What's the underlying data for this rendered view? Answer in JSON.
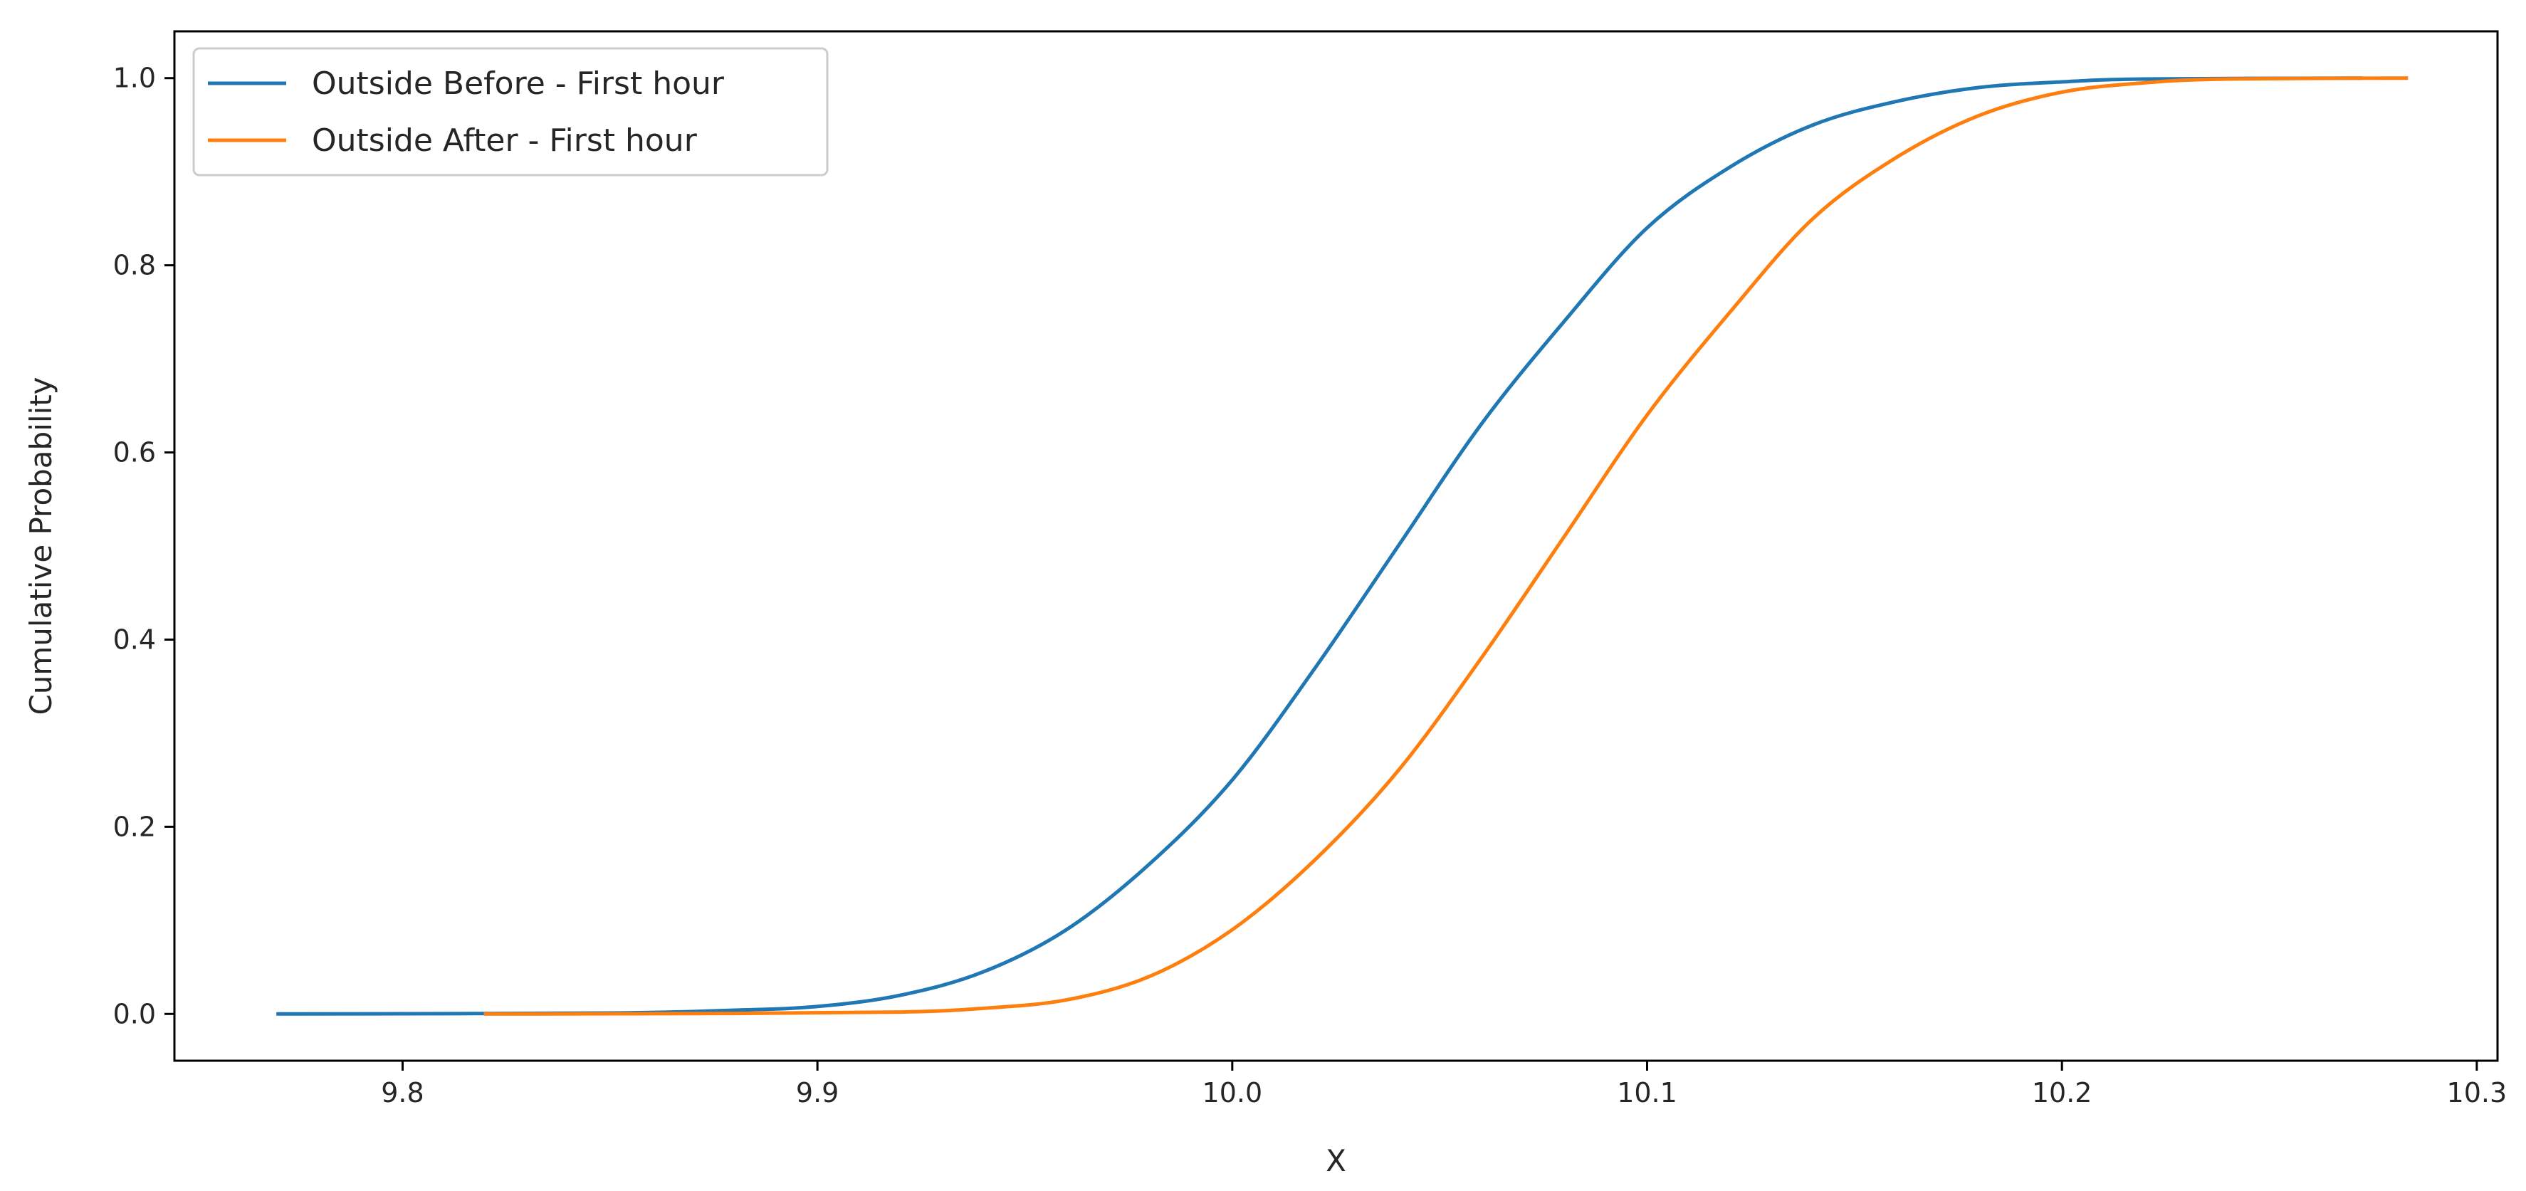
{
  "chart_data": {
    "type": "line",
    "title": "",
    "xlabel": "X",
    "ylabel": "Cumulative Probability",
    "xlim": [
      9.745,
      10.305
    ],
    "ylim": [
      -0.05,
      1.05
    ],
    "xticks": [
      {
        "value": 9.8,
        "label": "9.8"
      },
      {
        "value": 9.9,
        "label": "9.9"
      },
      {
        "value": 10.0,
        "label": "10.0"
      },
      {
        "value": 10.1,
        "label": "10.1"
      },
      {
        "value": 10.2,
        "label": "10.2"
      },
      {
        "value": 10.3,
        "label": "10.3"
      }
    ],
    "yticks": [
      {
        "value": 0.0,
        "label": "0.0"
      },
      {
        "value": 0.2,
        "label": "0.2"
      },
      {
        "value": 0.4,
        "label": "0.4"
      },
      {
        "value": 0.6,
        "label": "0.6"
      },
      {
        "value": 0.8,
        "label": "0.8"
      },
      {
        "value": 1.0,
        "label": "1.0"
      }
    ],
    "grid": false,
    "legend_position": "upper-left",
    "series": [
      {
        "name": "Outside Before - First hour",
        "color": "#1f77b4",
        "points": [
          [
            9.77,
            0.0
          ],
          [
            9.85,
            0.001
          ],
          [
            9.88,
            0.004
          ],
          [
            9.9,
            0.008
          ],
          [
            9.92,
            0.02
          ],
          [
            9.94,
            0.045
          ],
          [
            9.96,
            0.09
          ],
          [
            9.98,
            0.16
          ],
          [
            10.0,
            0.25
          ],
          [
            10.02,
            0.37
          ],
          [
            10.04,
            0.5
          ],
          [
            10.06,
            0.63
          ],
          [
            10.08,
            0.74
          ],
          [
            10.1,
            0.84
          ],
          [
            10.12,
            0.905
          ],
          [
            10.14,
            0.95
          ],
          [
            10.16,
            0.975
          ],
          [
            10.18,
            0.99
          ],
          [
            10.2,
            0.996
          ],
          [
            10.22,
            0.999
          ],
          [
            10.272,
            1.0
          ]
        ]
      },
      {
        "name": "Outside After - First hour",
        "color": "#ff7f0e",
        "points": [
          [
            9.82,
            0.0
          ],
          [
            9.88,
            0.0005
          ],
          [
            9.92,
            0.002
          ],
          [
            9.94,
            0.006
          ],
          [
            9.96,
            0.015
          ],
          [
            9.98,
            0.04
          ],
          [
            10.0,
            0.09
          ],
          [
            10.02,
            0.165
          ],
          [
            10.04,
            0.26
          ],
          [
            10.06,
            0.38
          ],
          [
            10.08,
            0.51
          ],
          [
            10.1,
            0.64
          ],
          [
            10.12,
            0.75
          ],
          [
            10.14,
            0.85
          ],
          [
            10.16,
            0.915
          ],
          [
            10.18,
            0.96
          ],
          [
            10.2,
            0.985
          ],
          [
            10.22,
            0.995
          ],
          [
            10.24,
            0.999
          ],
          [
            10.283,
            1.0
          ]
        ]
      }
    ]
  }
}
